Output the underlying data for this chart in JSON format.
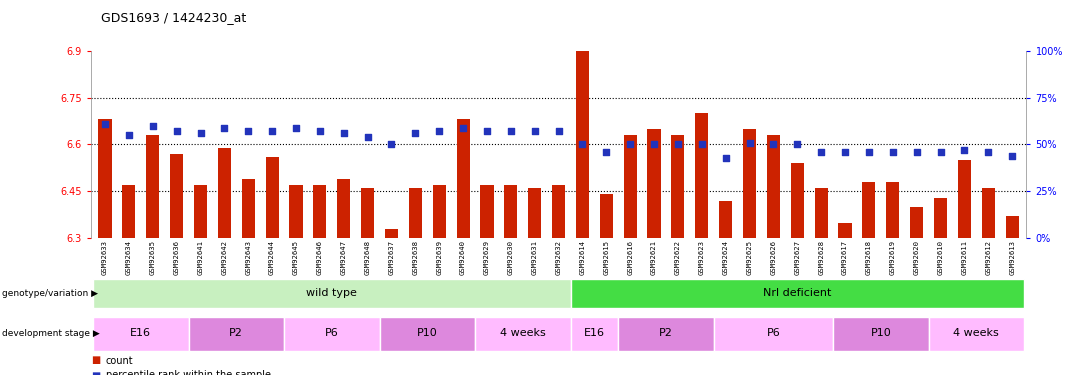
{
  "title": "GDS1693 / 1424230_at",
  "samples": [
    "GSM92633",
    "GSM92634",
    "GSM92635",
    "GSM92636",
    "GSM92641",
    "GSM92642",
    "GSM92643",
    "GSM92644",
    "GSM92645",
    "GSM92646",
    "GSM92647",
    "GSM92648",
    "GSM92637",
    "GSM92638",
    "GSM92639",
    "GSM92640",
    "GSM92629",
    "GSM92630",
    "GSM92631",
    "GSM92632",
    "GSM92614",
    "GSM92615",
    "GSM92616",
    "GSM92621",
    "GSM92622",
    "GSM92623",
    "GSM92624",
    "GSM92625",
    "GSM92626",
    "GSM92627",
    "GSM92628",
    "GSM92617",
    "GSM92618",
    "GSM92619",
    "GSM92620",
    "GSM92610",
    "GSM92611",
    "GSM92612",
    "GSM92613"
  ],
  "count_values": [
    6.68,
    6.47,
    6.63,
    6.57,
    6.47,
    6.59,
    6.49,
    6.56,
    6.47,
    6.47,
    6.49,
    6.46,
    6.33,
    6.46,
    6.47,
    6.68,
    6.47,
    6.47,
    6.46,
    6.47,
    6.9,
    6.44,
    6.63,
    6.65,
    6.63,
    6.7,
    6.42,
    6.65,
    6.63,
    6.54,
    6.46,
    6.35,
    6.48,
    6.48,
    6.4,
    6.43,
    6.55,
    6.46,
    6.37
  ],
  "percentile_values": [
    61,
    55,
    60,
    57,
    56,
    59,
    57,
    57,
    59,
    57,
    56,
    54,
    50,
    56,
    57,
    59,
    57,
    57,
    57,
    57,
    50,
    46,
    50,
    50,
    50,
    50,
    43,
    51,
    50,
    50,
    46,
    46,
    46,
    46,
    46,
    46,
    47,
    46,
    44
  ],
  "ymin": 6.3,
  "ymax": 6.9,
  "yticks_left": [
    6.3,
    6.45,
    6.6,
    6.75,
    6.9
  ],
  "ytick_labels_left": [
    "6.3",
    "6.45",
    "6.6",
    "6.75",
    "6.9"
  ],
  "ylines": [
    6.45,
    6.6,
    6.75
  ],
  "right_ytick_pcts": [
    0,
    25,
    50,
    75,
    100
  ],
  "right_ylabels": [
    "0%",
    "25%",
    "50%",
    "75%",
    "100%"
  ],
  "bar_color": "#cc2200",
  "dot_color": "#2233bb",
  "bar_width": 0.55,
  "genotype_groups": [
    {
      "label": "wild type",
      "start": 0,
      "end": 20,
      "color": "#c8f0c0"
    },
    {
      "label": "Nrl deficient",
      "start": 20,
      "end": 39,
      "color": "#44dd44"
    }
  ],
  "stage_groups": [
    {
      "label": "E16",
      "start": 0,
      "end": 4,
      "color": "#ffbbff"
    },
    {
      "label": "P2",
      "start": 4,
      "end": 8,
      "color": "#dd88dd"
    },
    {
      "label": "P6",
      "start": 8,
      "end": 12,
      "color": "#ffbbff"
    },
    {
      "label": "P10",
      "start": 12,
      "end": 16,
      "color": "#dd88dd"
    },
    {
      "label": "4 weeks",
      "start": 16,
      "end": 20,
      "color": "#ffbbff"
    },
    {
      "label": "E16",
      "start": 20,
      "end": 22,
      "color": "#ffbbff"
    },
    {
      "label": "P2",
      "start": 22,
      "end": 26,
      "color": "#dd88dd"
    },
    {
      "label": "P6",
      "start": 26,
      "end": 31,
      "color": "#ffbbff"
    },
    {
      "label": "P10",
      "start": 31,
      "end": 35,
      "color": "#dd88dd"
    },
    {
      "label": "4 weeks",
      "start": 35,
      "end": 39,
      "color": "#ffbbff"
    }
  ],
  "label_genotype": "genotype/variation",
  "label_stage": "development stage",
  "legend_count_label": "count",
  "legend_pct_label": "percentile rank within the sample",
  "bg_color": "#ffffff"
}
